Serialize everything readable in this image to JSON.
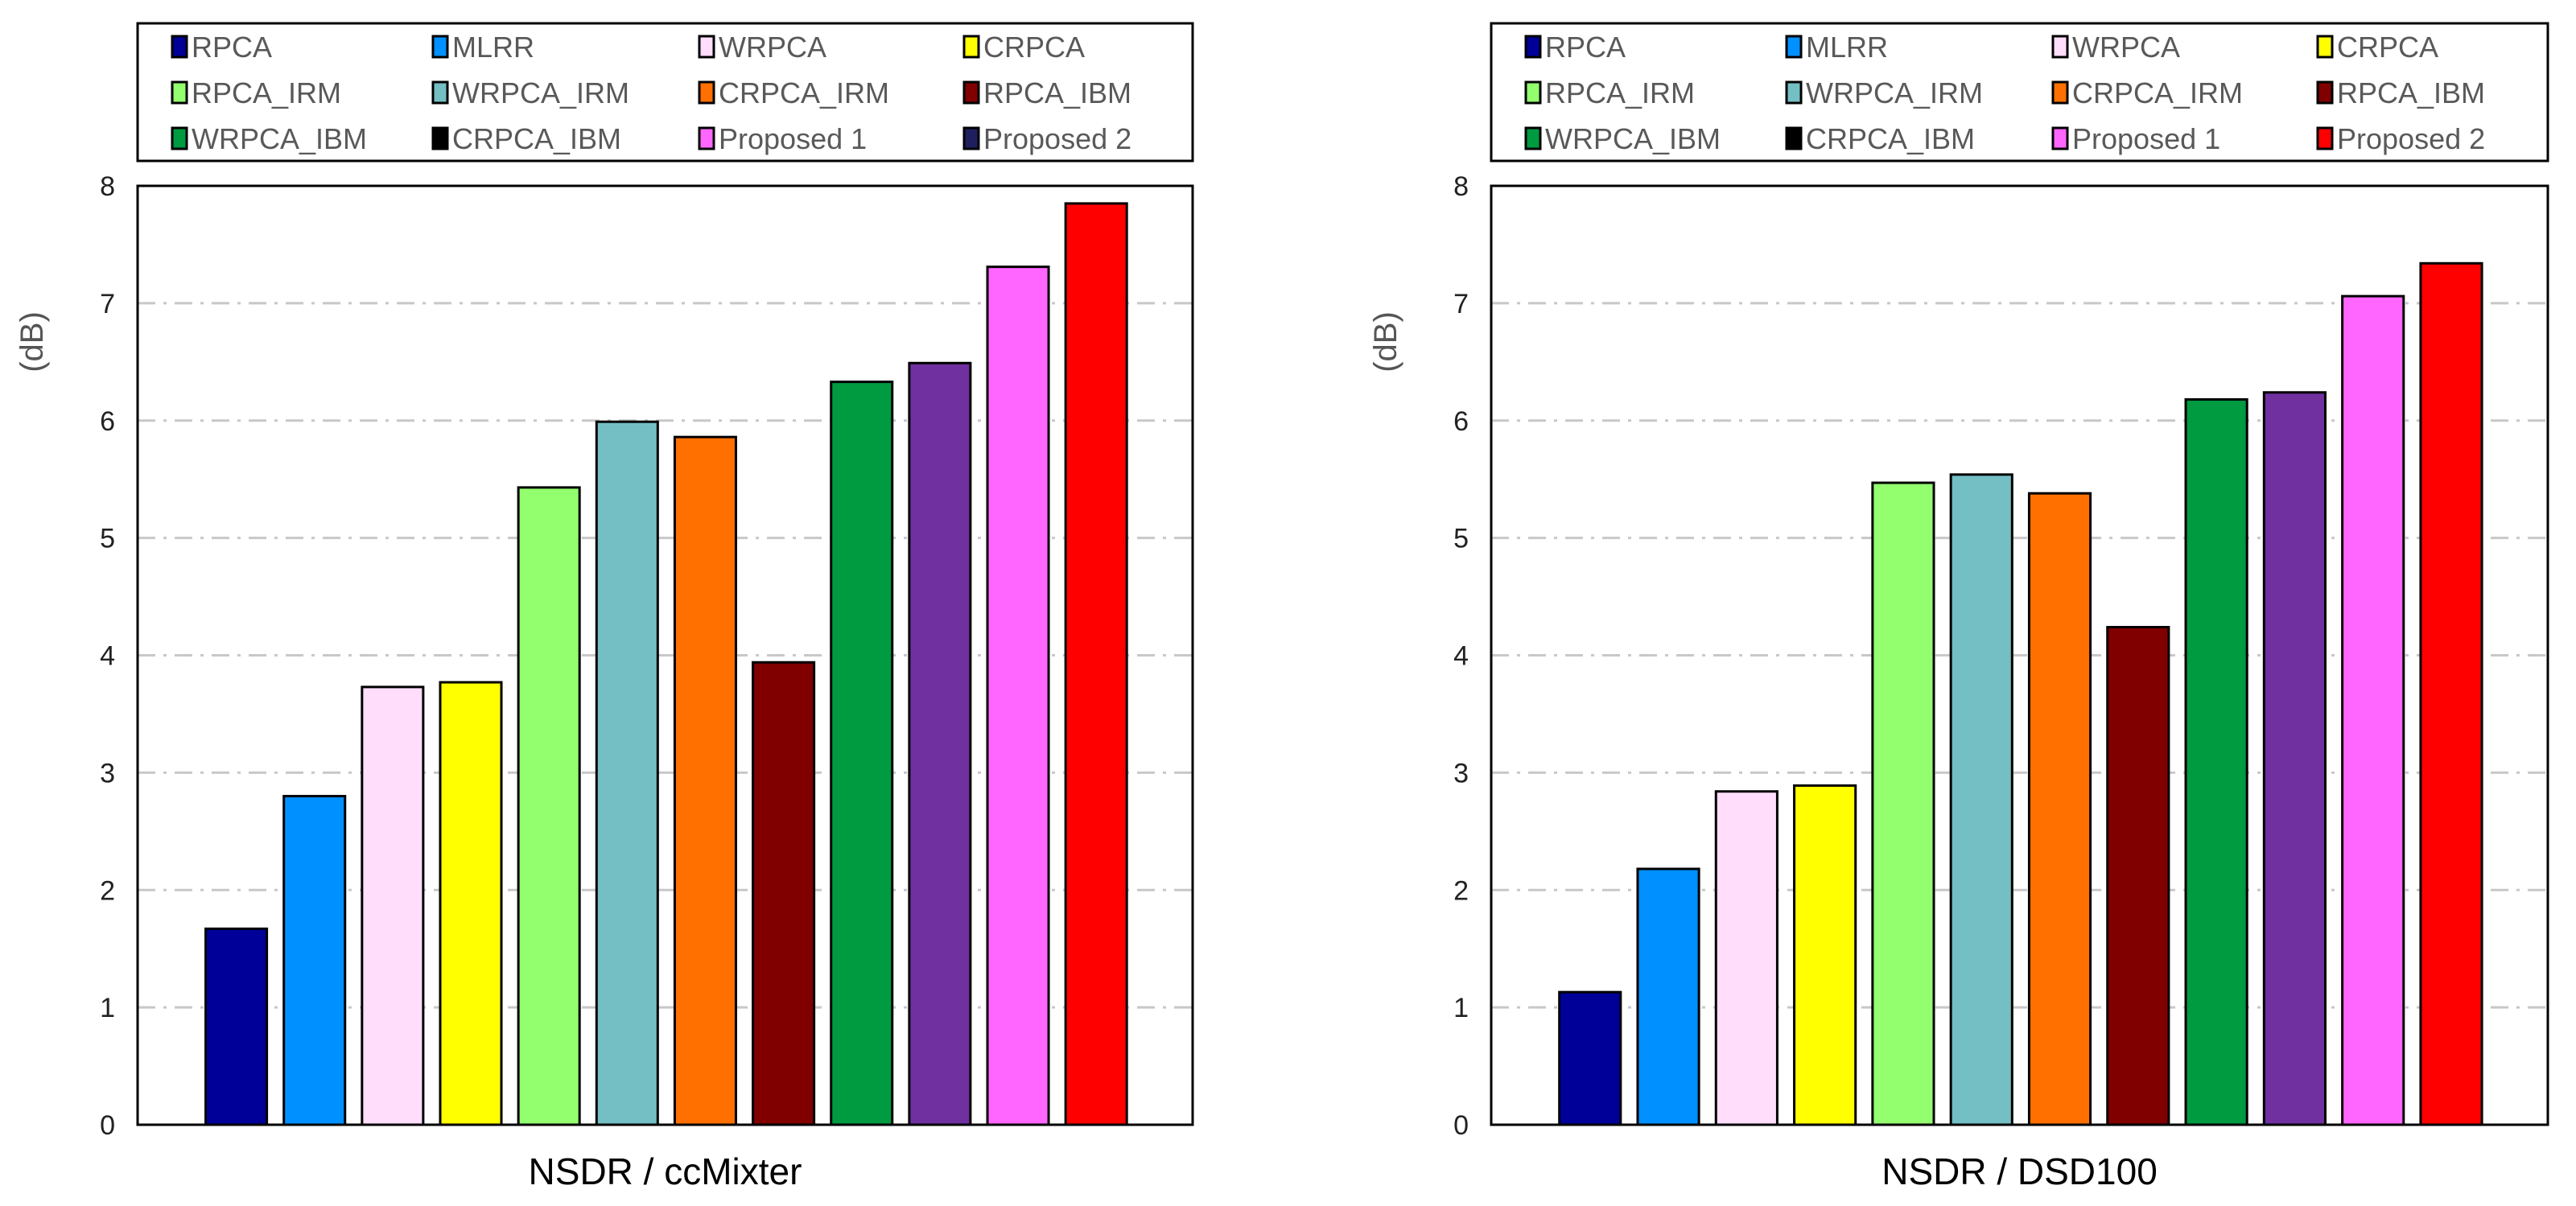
{
  "chart_data": [
    {
      "type": "bar",
      "title": "NSDR / ccMixter",
      "xlabel": "NSDR / ccMixter",
      "ylabel": "(dB)",
      "ylim": [
        0,
        8
      ],
      "yticks": [
        "0",
        "1",
        "2",
        "3",
        "4",
        "5",
        "6",
        "7",
        "8"
      ],
      "grid": true,
      "legend_placement": "top",
      "categories": [
        "RPCA",
        "MLRR",
        "WRPCA",
        "CRPCA",
        "RPCA_IRM",
        "WRPCA_IRM",
        "CRPCA_IRM",
        "RPCA_IBM",
        "WRPCA_IBM",
        "CRPCA_IBM",
        "Proposed 1",
        "Proposed 2"
      ],
      "values": [
        1.67,
        2.8,
        3.73,
        3.77,
        5.43,
        5.99,
        5.86,
        3.94,
        6.33,
        6.49,
        7.31,
        7.85
      ]
    },
    {
      "type": "bar",
      "title": "NSDR / DSD100",
      "xlabel": "NSDR / DSD100",
      "ylabel": "(dB)",
      "ylim": [
        0,
        8
      ],
      "yticks": [
        "0",
        "1",
        "2",
        "3",
        "4",
        "5",
        "6",
        "7",
        "8"
      ],
      "grid": true,
      "legend_placement": "top",
      "categories": [
        "RPCA",
        "MLRR",
        "WRPCA",
        "CRPCA",
        "RPCA_IRM",
        "WRPCA_IRM",
        "CRPCA_IRM",
        "RPCA_IBM",
        "WRPCA_IBM",
        "CRPCA_IBM",
        "Proposed 1",
        "Proposed 2"
      ],
      "values": [
        1.13,
        2.18,
        2.84,
        2.89,
        5.47,
        5.54,
        5.38,
        4.24,
        6.18,
        6.24,
        7.06,
        7.34
      ]
    }
  ],
  "bar_colors": [
    "#000099",
    "#0090FF",
    "#FFDDFB",
    "#FFFF00",
    "#93FF6F",
    "#73BFC4",
    "#FF7000",
    "#800000",
    "#009A41",
    "#7030A0",
    "#FF66FF",
    "#FF0000"
  ],
  "legend_colors_left": [
    "#000099",
    "#0090FF",
    "#FFDDFB",
    "#FFFF00",
    "#93FF6F",
    "#73BFC4",
    "#FF7000",
    "#800000",
    "#009A41",
    "#000000",
    "#FF66FF",
    "#1F1F5F"
  ],
  "legend_colors_right": [
    "#000099",
    "#0090FF",
    "#FFDDFB",
    "#FFFF00",
    "#93FF6F",
    "#73BFC4",
    "#FF7000",
    "#800000",
    "#009A41",
    "#000000",
    "#FF66FF",
    "#FF0000"
  ]
}
